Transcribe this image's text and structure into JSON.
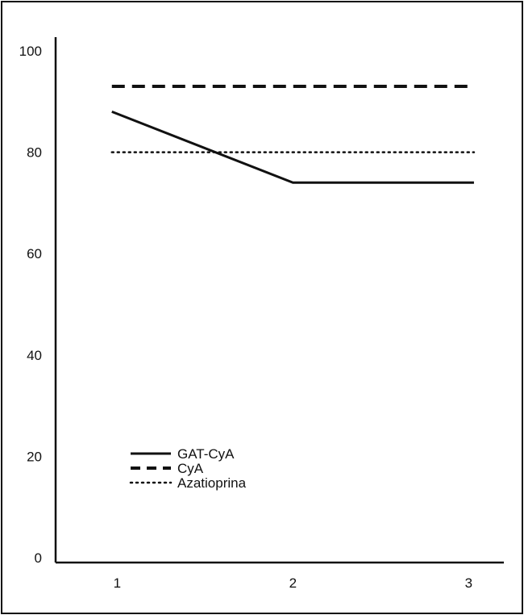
{
  "chart_data": {
    "type": "line",
    "x": [
      1,
      2,
      3
    ],
    "xticks": [
      "1",
      "2",
      "3"
    ],
    "yticks": [
      "0",
      "20",
      "40",
      "60",
      "80",
      "100"
    ],
    "ylim": [
      0,
      100
    ],
    "xlim": [
      0.65,
      3.2
    ],
    "series": [
      {
        "name": "GAT-CyA",
        "values": [
          88,
          74,
          74
        ],
        "style": "solid"
      },
      {
        "name": "CyA",
        "values": [
          93,
          93,
          93
        ],
        "style": "dashed"
      },
      {
        "name": "Azatioprina",
        "values": [
          80,
          80,
          80
        ],
        "style": "dotted"
      }
    ],
    "grid": false,
    "legend_position": "bottom-left",
    "colors": {
      "line": "#111111",
      "axis": "#111111"
    }
  }
}
